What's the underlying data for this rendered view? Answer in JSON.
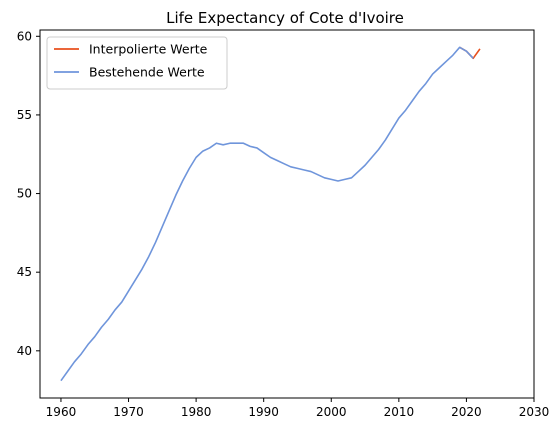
{
  "chart_data": {
    "type": "line",
    "title": "Life Expectancy of Cote d'Ivoire",
    "xlabel": "",
    "ylabel": "",
    "xlim": [
      1956.9,
      2030
    ],
    "ylim": [
      37.0,
      60.4
    ],
    "xticks": [
      1960,
      1970,
      1980,
      1990,
      2000,
      2010,
      2020,
      2030
    ],
    "yticks": [
      40,
      45,
      50,
      55,
      60
    ],
    "grid": false,
    "legend_position": "top-left",
    "series": [
      {
        "name": "Interpolierte Werte",
        "color": "#e8501e",
        "x": [
          2019,
          2020,
          2021,
          2022
        ],
        "y": [
          59.3,
          59.05,
          58.6,
          59.2
        ]
      },
      {
        "name": "Bestehende Werte",
        "color": "#6f95db",
        "x": [
          1960,
          1961,
          1962,
          1963,
          1964,
          1965,
          1966,
          1967,
          1968,
          1969,
          1970,
          1971,
          1972,
          1973,
          1974,
          1975,
          1976,
          1977,
          1978,
          1979,
          1980,
          1981,
          1982,
          1983,
          1984,
          1985,
          1986,
          1987,
          1988,
          1989,
          1990,
          1991,
          1992,
          1993,
          1994,
          1995,
          1996,
          1997,
          1998,
          1999,
          2000,
          2001,
          2002,
          2003,
          2004,
          2005,
          2006,
          2007,
          2008,
          2009,
          2010,
          2011,
          2012,
          2013,
          2014,
          2015,
          2016,
          2017,
          2018,
          2019,
          2020,
          2021
        ],
        "y": [
          38.1,
          38.7,
          39.3,
          39.8,
          40.4,
          40.9,
          41.5,
          42.0,
          42.6,
          43.1,
          43.8,
          44.5,
          45.2,
          46.0,
          46.9,
          47.9,
          48.9,
          49.9,
          50.8,
          51.6,
          52.3,
          52.7,
          52.9,
          53.2,
          53.1,
          53.2,
          53.2,
          53.2,
          53.0,
          52.9,
          52.6,
          52.3,
          52.1,
          51.9,
          51.7,
          51.6,
          51.5,
          51.4,
          51.2,
          51.0,
          50.9,
          50.8,
          50.9,
          51.0,
          51.4,
          51.8,
          52.3,
          52.8,
          53.4,
          54.1,
          54.8,
          55.3,
          55.9,
          56.5,
          57.0,
          57.6,
          58.0,
          58.4,
          58.8,
          59.3,
          59.05,
          58.6
        ]
      }
    ]
  }
}
